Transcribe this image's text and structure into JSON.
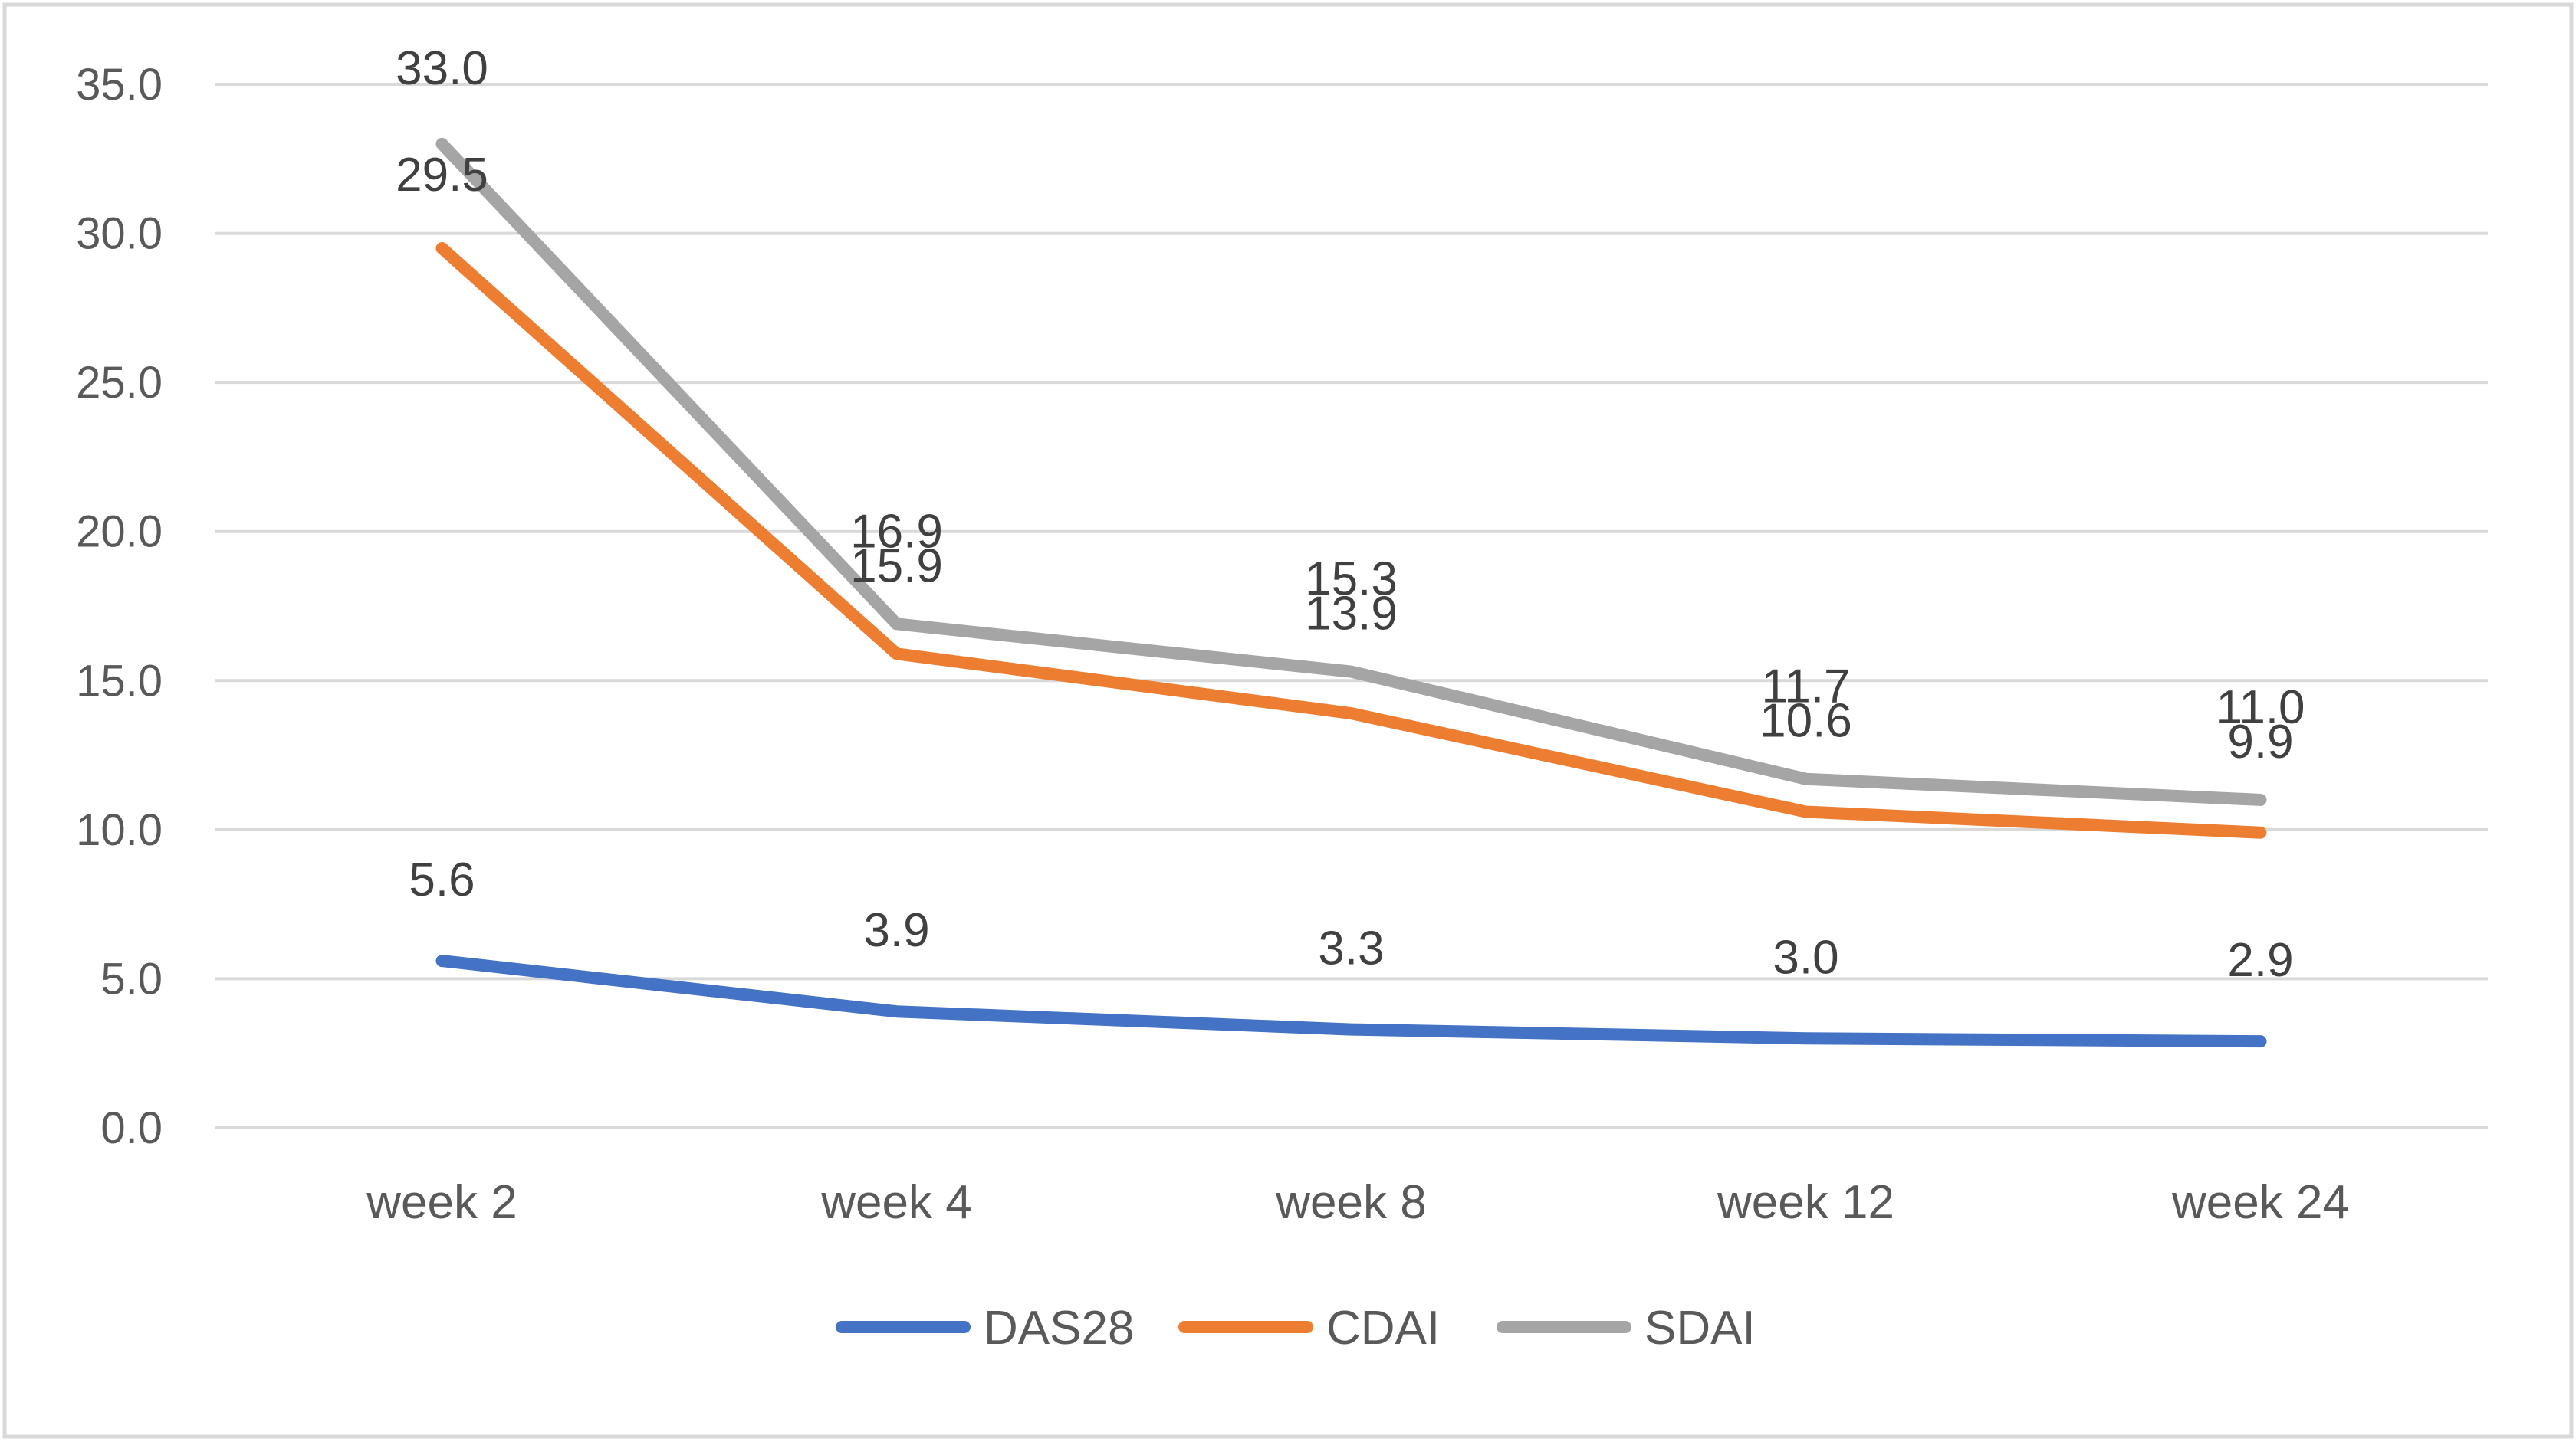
{
  "chart_data": {
    "type": "line",
    "title": "",
    "xlabel": "",
    "ylabel": "",
    "categories": [
      "week 2",
      "week 4",
      "week 8",
      "week 12",
      "week 24"
    ],
    "ylim": [
      0,
      35
    ],
    "yticks": [
      "0.0",
      "5.0",
      "10.0",
      "15.0",
      "20.0",
      "25.0",
      "30.0",
      "35.0"
    ],
    "grid": true,
    "legend_position": "bottom",
    "series": [
      {
        "name": "DAS28",
        "color": "#4472C4",
        "values": [
          5.6,
          3.9,
          3.3,
          3.0,
          2.9
        ],
        "labels": [
          "5.6",
          "3.9",
          "3.3",
          "3.0",
          "2.9"
        ]
      },
      {
        "name": "CDAI",
        "color": "#ED7D31",
        "values": [
          29.5,
          15.9,
          13.9,
          10.6,
          9.9
        ],
        "labels": [
          "29.5",
          "15.9",
          "13.9",
          "10.6",
          "9.9"
        ]
      },
      {
        "name": "SDAI",
        "color": "#A5A5A5",
        "values": [
          33.0,
          16.9,
          15.3,
          11.7,
          11.0
        ],
        "labels": [
          "33.0",
          "16.9",
          "15.3",
          "11.7",
          "11.0"
        ]
      }
    ]
  }
}
